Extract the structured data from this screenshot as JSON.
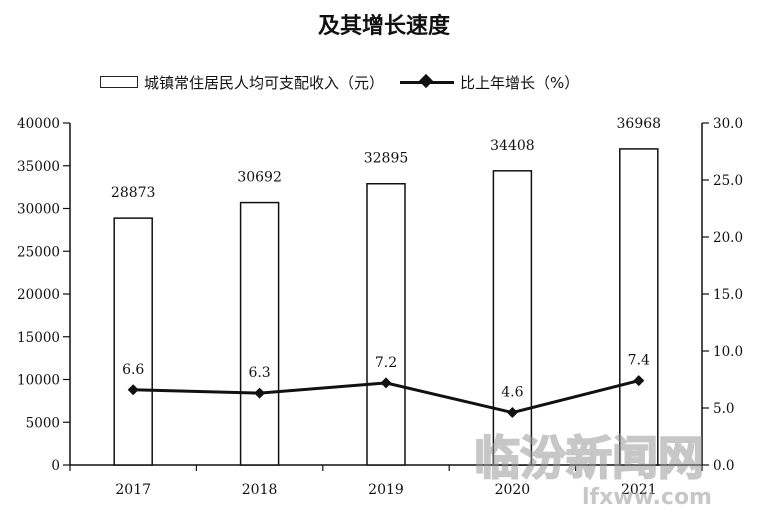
{
  "chart_data": {
    "type": "bar",
    "title": "及其增长速度",
    "categories": [
      "2017",
      "2018",
      "2019",
      "2020",
      "2021"
    ],
    "series": [
      {
        "name": "城镇常住居民人均可支配收入（元）",
        "type": "bar",
        "axis": "left",
        "values": [
          28873,
          30692,
          32895,
          34408,
          36968
        ],
        "labels": [
          "28873",
          "30692",
          "32895",
          "34408",
          "36968"
        ]
      },
      {
        "name": "比上年增长（%）",
        "type": "line",
        "axis": "right",
        "values": [
          6.6,
          6.3,
          7.2,
          4.6,
          7.4
        ],
        "labels": [
          "6.6",
          "6.3",
          "7.2",
          "4.6",
          "7.4"
        ]
      }
    ],
    "y_left": {
      "ylim": [
        0,
        40000
      ],
      "ticks": [
        "0",
        "5000",
        "10000",
        "15000",
        "20000",
        "25000",
        "30000",
        "35000",
        "40000"
      ]
    },
    "y_right": {
      "ylim": [
        0,
        30
      ],
      "ticks": [
        "0.0",
        "5.0",
        "10.0",
        "15.0",
        "20.0",
        "25.0",
        "30.0"
      ]
    },
    "legend_position": "top",
    "grid": false
  },
  "colors": {
    "ink": "#111111",
    "bar_fill": "#ffffff"
  },
  "watermark": {
    "text": "临汾新闻网",
    "url": "lfxww.com"
  }
}
